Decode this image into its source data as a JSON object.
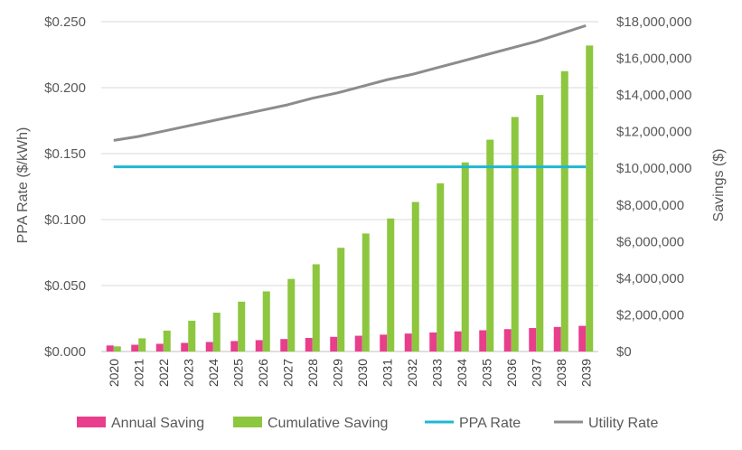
{
  "chart_data": {
    "type": "bar",
    "categories": [
      "2020",
      "2021",
      "2022",
      "2023",
      "2024",
      "2025",
      "2026",
      "2027",
      "2028",
      "2029",
      "2030",
      "2031",
      "2032",
      "2033",
      "2034",
      "2035",
      "2036",
      "2037",
      "2038",
      "2039"
    ],
    "series": [
      {
        "name": "Annual Saving",
        "kind": "bar",
        "axis": "right",
        "color": "#e83e8c",
        "values": [
          330000,
          370000,
          420000,
          470000,
          520000,
          570000,
          620000,
          680000,
          740000,
          800000,
          860000,
          920000,
          980000,
          1040000,
          1100000,
          1160000,
          1220000,
          1280000,
          1340000,
          1400000
        ]
      },
      {
        "name": "Cumulative Saving",
        "kind": "bar",
        "axis": "right",
        "color": "#8dc63f",
        "values": [
          280000,
          720000,
          1140000,
          1680000,
          2120000,
          2720000,
          3280000,
          3960000,
          4760000,
          5660000,
          6440000,
          7260000,
          8160000,
          9180000,
          10320000,
          11560000,
          12800000,
          14000000,
          15300000,
          16700000
        ]
      },
      {
        "name": "PPA Rate",
        "kind": "line",
        "axis": "left",
        "color": "#1fb7d4",
        "values": [
          0.14,
          0.14,
          0.14,
          0.14,
          0.14,
          0.14,
          0.14,
          0.14,
          0.14,
          0.14,
          0.14,
          0.14,
          0.14,
          0.14,
          0.14,
          0.14,
          0.14,
          0.14,
          0.14,
          0.14
        ]
      },
      {
        "name": "Utility Rate",
        "kind": "line",
        "axis": "left",
        "color": "#8c8c8c",
        "values": [
          0.16,
          0.163,
          0.167,
          0.171,
          0.175,
          0.179,
          0.183,
          0.187,
          0.192,
          0.196,
          0.201,
          0.206,
          0.21,
          0.215,
          0.22,
          0.225,
          0.23,
          0.235,
          0.241,
          0.247
        ]
      }
    ],
    "ylabel_left": "PPA Rate ($/kWh)",
    "ylabel_right": "Savings ($)",
    "ylim_left": [
      0,
      0.25
    ],
    "ylim_right": [
      0,
      18000000
    ],
    "yticks_left": [
      "$0.000",
      "$0.050",
      "$0.100",
      "$0.150",
      "$0.200",
      "$0.250"
    ],
    "yticks_right": [
      "$0",
      "$2,000,000",
      "$4,000,000",
      "$6,000,000",
      "$8,000,000",
      "$10,000,000",
      "$12,000,000",
      "$14,000,000",
      "$16,000,000",
      "$18,000,000"
    ],
    "grid": true,
    "legend_position": "bottom"
  }
}
